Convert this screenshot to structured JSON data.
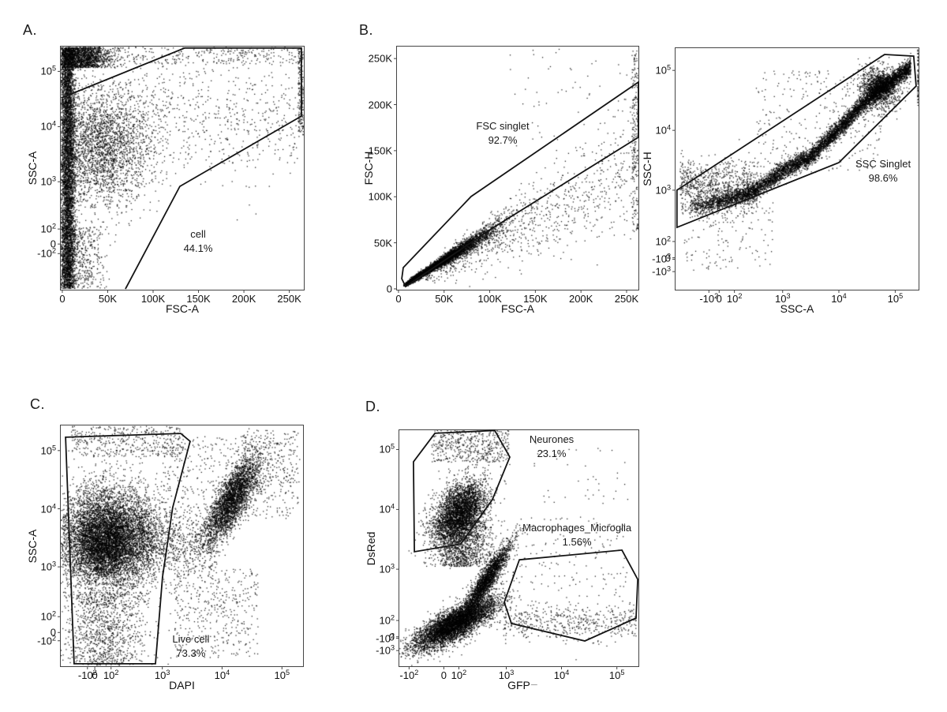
{
  "figure": {
    "panel_letters": [
      "A.",
      "B.",
      "C.",
      "D."
    ],
    "artifact_dash": "–",
    "point_color": "#000000",
    "gate_color": "#141414",
    "axis_color": "#454545"
  },
  "chart_data": [
    {
      "id": "A",
      "type": "scatter",
      "xlabel": "FSC-A",
      "ylabel": "SSC-A",
      "x_axis": {
        "scale": "linear",
        "min": -1700,
        "max": 266000,
        "ticks": [
          {
            "v": 0,
            "l": "0"
          },
          {
            "v": 50000,
            "l": "50K"
          },
          {
            "v": 100000,
            "l": "100K"
          },
          {
            "v": 150000,
            "l": "150K"
          },
          {
            "v": 200000,
            "l": "200K"
          },
          {
            "v": 250000,
            "l": "250K"
          }
        ]
      },
      "y_axis": {
        "scale": "flow",
        "mp": 150,
        "mn": 244,
        "min": -800,
        "max": 281000,
        "ticks": [
          {
            "v": 100000,
            "l": "10^5"
          },
          {
            "v": 10000,
            "l": "10^4"
          },
          {
            "v": 1000,
            "l": "10^3"
          },
          {
            "v": 100,
            "l": "10^2"
          },
          {
            "v": 0,
            "l": "0"
          },
          {
            "v": -100,
            "l": "-10^2"
          }
        ]
      },
      "gates": [
        {
          "name": "cell",
          "pct": "44.1%",
          "label_fx": 0.565,
          "label_fy": 0.745,
          "closed": false,
          "pts": [
            [
              0.003,
              0.211
            ],
            [
              0.51,
              0.006
            ],
            [
              0.99,
              0.006
            ],
            [
              0.99,
              0.286
            ],
            [
              0.49,
              0.575
            ],
            [
              0.266,
              0.997
            ]
          ]
        }
      ],
      "seed": 101,
      "clusters": [
        {
          "n": 5200,
          "t": "xy",
          "x": [
            "g",
            6000,
            4200
          ],
          "y": [
            "au",
            -1.85,
            8.18
          ]
        },
        {
          "n": 1700,
          "t": "xy",
          "x": [
            "g",
            20000,
            16000
          ],
          "y": [
            "au",
            7.35,
            8.2
          ]
        },
        {
          "n": 300,
          "t": "xy",
          "x": [
            "u",
            30000,
            262000
          ],
          "y": [
            "au",
            7.5,
            8.2
          ]
        },
        {
          "n": 2800,
          "t": "xy",
          "x": [
            "g",
            42000,
            28000
          ],
          "y": [
            "ag",
            4.1,
            1.25
          ]
        },
        {
          "n": 650,
          "t": "xy",
          "x": [
            "u",
            70000,
            262000
          ],
          "y": [
            "ag",
            5.3,
            1.3
          ]
        },
        {
          "n": 500,
          "t": "xy",
          "x": [
            "g",
            18000,
            15000
          ],
          "y": [
            "au",
            -1.85,
            0.7
          ]
        },
        {
          "n": 220,
          "t": "xy",
          "x": [
            "u",
            260000,
            266000
          ],
          "y": [
            "au",
            4.5,
            8.15
          ]
        }
      ]
    },
    {
      "id": "B-left",
      "type": "scatter",
      "xlabel": "FSC-A",
      "ylabel": "FSC-H",
      "x_axis": {
        "scale": "linear",
        "min": -1700,
        "max": 263000,
        "ticks": [
          {
            "v": 0,
            "l": "0"
          },
          {
            "v": 50000,
            "l": "50K"
          },
          {
            "v": 100000,
            "l": "100K"
          },
          {
            "v": 150000,
            "l": "150K"
          },
          {
            "v": 200000,
            "l": "200K"
          },
          {
            "v": 250000,
            "l": "250K"
          }
        ]
      },
      "y_axis": {
        "scale": "linear",
        "min": -900,
        "max": 263000,
        "ticks": [
          {
            "v": 0,
            "l": "0"
          },
          {
            "v": 50000,
            "l": "50K"
          },
          {
            "v": 100000,
            "l": "100K"
          },
          {
            "v": 150000,
            "l": "150K"
          },
          {
            "v": 200000,
            "l": "200K"
          },
          {
            "v": 250000,
            "l": "250K"
          }
        ]
      },
      "gates": [
        {
          "name": "FSC singlet",
          "pct": "92.7%",
          "label_fx": 0.438,
          "label_fy": 0.3,
          "closed": true,
          "pts": [
            [
              0.02,
              0.955
            ],
            [
              0.026,
              0.909
            ],
            [
              0.307,
              0.617
            ],
            [
              1.0,
              0.146
            ],
            [
              1.0,
              0.373
            ],
            [
              0.386,
              0.753
            ],
            [
              0.036,
              0.987
            ]
          ]
        }
      ],
      "seed": 202,
      "clusters": [
        {
          "n": 5200,
          "t": "diag",
          "x": [
            "g",
            40000,
            32000
          ],
          "k": 0.62,
          "noise": 0.055,
          "xmin": 7000
        },
        {
          "n": 900,
          "t": "diag",
          "x": [
            "u",
            30000,
            262000
          ],
          "k": 0.5,
          "noise": 0.14
        },
        {
          "n": 1300,
          "t": "diag",
          "x": [
            "g",
            14000,
            7000
          ],
          "k": 0.62,
          "noise": 0.09,
          "xmin": 6000
        },
        {
          "n": 220,
          "t": "xy",
          "x": [
            "u",
            256000,
            263000
          ],
          "y": [
            "u",
            60000,
            262000
          ]
        },
        {
          "n": 60,
          "t": "xy",
          "x": [
            "u",
            120000,
            260000
          ],
          "y": [
            "u",
            150000,
            262000
          ]
        }
      ]
    },
    {
      "id": "B-right",
      "type": "scatter",
      "xlabel": "SSC-A",
      "ylabel": "SSC-H",
      "x_axis": {
        "scale": "flow",
        "mp": 150,
        "mn": 232,
        "min": -670,
        "max": 260000,
        "ticks": [
          {
            "v": -100,
            "l": "-10^2"
          },
          {
            "v": 0,
            "l": "0"
          },
          {
            "v": 100,
            "l": "10^2"
          },
          {
            "v": 1000,
            "l": "10^3"
          },
          {
            "v": 10000,
            "l": "10^4"
          },
          {
            "v": 100000,
            "l": "10^5"
          }
        ]
      },
      "y_axis": {
        "scale": "flow",
        "mp": 150,
        "mn": 1800,
        "min": -2800,
        "max": 235000,
        "ticks": [
          {
            "v": 100000,
            "l": "10^5"
          },
          {
            "v": 10000,
            "l": "10^4"
          },
          {
            "v": 1000,
            "l": "10^3"
          },
          {
            "v": 100,
            "l": "10^2"
          },
          {
            "v": 0,
            "l": "0"
          },
          {
            "v": -100,
            "l": "-10^2"
          },
          {
            "v": -1000,
            "l": "-10^3"
          }
        ]
      },
      "gates": [
        {
          "name": "SSC Singlet",
          "pct": "98.6%",
          "label_fx": 0.854,
          "label_fy": 0.45,
          "closed": true,
          "pts": [
            [
              0.006,
              0.588
            ],
            [
              0.86,
              0.026
            ],
            [
              0.98,
              0.033
            ],
            [
              0.99,
              0.157
            ],
            [
              0.672,
              0.474
            ],
            [
              0.006,
              0.742
            ]
          ]
        }
      ],
      "seed": 303,
      "clusters": [
        {
          "n": 6500,
          "t": "curve",
          "pts": [
            [
              -350,
              520
            ],
            [
              0,
              620
            ],
            [
              300,
              950
            ],
            [
              1000,
              2100
            ],
            [
              3000,
              3500
            ],
            [
              10000,
              10500
            ],
            [
              40000,
              40000
            ],
            [
              90000,
              68000
            ],
            [
              190000,
              115000
            ]
          ],
          "s": 0.17,
          "p": 0.7
        },
        {
          "n": 1300,
          "t": "xy",
          "x": [
            "lg",
            4.72,
            0.17
          ],
          "y": [
            "lg",
            4.7,
            0.17
          ]
        },
        {
          "n": 300,
          "t": "xy",
          "x": [
            "lu",
            2.5,
            4.8
          ],
          "y": [
            "lu",
            3.3,
            5.0
          ]
        },
        {
          "n": 900,
          "t": "xy",
          "x": [
            "au",
            -1.6,
            1.6
          ],
          "y": [
            "ag",
            2.75,
            0.5
          ]
        },
        {
          "n": 120,
          "t": "xy",
          "x": [
            "u",
            250000,
            260000
          ],
          "y": [
            "au",
            5.8,
            8.0
          ]
        },
        {
          "n": 160,
          "t": "xy",
          "x": [
            "au",
            -1.5,
            2.2
          ],
          "y": [
            "au",
            -0.5,
            2.2
          ]
        }
      ]
    },
    {
      "id": "C",
      "type": "scatter",
      "xlabel": "DAPI",
      "ylabel": "SSC-A",
      "x_axis": {
        "scale": "flow",
        "mp": 150,
        "mn": 350,
        "min": -600,
        "max": 225000,
        "ticks": [
          {
            "v": -100,
            "l": "-10^2"
          },
          {
            "v": 0,
            "l": "0"
          },
          {
            "v": 100,
            "l": "10^2"
          },
          {
            "v": 1000,
            "l": "10^3"
          },
          {
            "v": 10000,
            "l": "10^4"
          },
          {
            "v": 100000,
            "l": "10^5"
          }
        ]
      },
      "y_axis": {
        "scale": "flow",
        "mp": 150,
        "mn": 300,
        "min": -530,
        "max": 270000,
        "ticks": [
          {
            "v": 100000,
            "l": "10^5"
          },
          {
            "v": 10000,
            "l": "10^4"
          },
          {
            "v": 1000,
            "l": "10^3"
          },
          {
            "v": 100,
            "l": "10^2"
          },
          {
            "v": 0,
            "l": "0"
          },
          {
            "v": -100,
            "l": "-10^2"
          }
        ]
      },
      "gates": [
        {
          "name": "Live cell",
          "pct": "73.3%",
          "label_fx": 0.537,
          "label_fy": 0.86,
          "closed": true,
          "pts": [
            [
              0.02,
              0.049
            ],
            [
              0.495,
              0.033
            ],
            [
              0.534,
              0.066
            ],
            [
              0.462,
              0.341
            ],
            [
              0.42,
              0.63
            ],
            [
              0.391,
              0.99
            ],
            [
              0.055,
              0.99
            ]
          ]
        }
      ],
      "seed": 404,
      "clusters": [
        {
          "n": 6000,
          "t": "xy",
          "x": [
            "ag",
            0.55,
            1.0
          ],
          "y": [
            "ag",
            3.85,
            1.0
          ]
        },
        {
          "n": 2600,
          "t": "xy",
          "x": [
            "ag",
            0.35,
            0.65
          ],
          "y": [
            "ag",
            3.35,
            0.7
          ]
        },
        {
          "n": 1100,
          "t": "xy",
          "x": [
            "ag",
            0.35,
            0.85
          ],
          "y": [
            "au",
            -1.3,
            1.6
          ]
        },
        {
          "n": 420,
          "t": "xy",
          "x": [
            "au",
            -0.9,
            3.4
          ],
          "y": [
            "au",
            6.95,
            8.15
          ]
        },
        {
          "n": 3000,
          "t": "corr",
          "x": [
            "lg",
            4.18,
            0.22
          ],
          "a": -1.35,
          "b": 1.25,
          "s": 0.55
        },
        {
          "n": 800,
          "t": "xy",
          "x": [
            "lu",
            2.6,
            3.9
          ],
          "y": [
            "ag",
            3.6,
            0.75
          ]
        },
        {
          "n": 400,
          "t": "xy",
          "x": [
            "lu",
            3.2,
            4.6
          ],
          "y": [
            "au",
            -1.0,
            2.5
          ]
        },
        {
          "n": 260,
          "t": "xy",
          "x": [
            "lu",
            4.3,
            5.3
          ],
          "y": [
            "au",
            4.5,
            8.0
          ]
        },
        {
          "n": 300,
          "t": "xy",
          "x": [
            "lu",
            3.0,
            5.2
          ],
          "y": [
            "au",
            5.5,
            7.8
          ]
        }
      ]
    },
    {
      "id": "D",
      "type": "scatter",
      "xlabel": "GFP",
      "ylabel": "DsRed",
      "x_axis": {
        "scale": "flow",
        "mp": 150,
        "mn": 50,
        "min": -155,
        "max": 245000,
        "ticks": [
          {
            "v": -100,
            "l": "-10^2"
          },
          {
            "v": 0,
            "l": "0"
          },
          {
            "v": 100,
            "l": "10^2"
          },
          {
            "v": 1000,
            "l": "10^3"
          },
          {
            "v": 10000,
            "l": "10^4"
          },
          {
            "v": 100000,
            "l": "10^5"
          }
        ]
      },
      "y_axis": {
        "scale": "flow",
        "mp": 150,
        "mn": 1800,
        "min": -2500,
        "max": 210000,
        "ticks": [
          {
            "v": 100000,
            "l": "10^5"
          },
          {
            "v": 10000,
            "l": "10^4"
          },
          {
            "v": 1000,
            "l": "10^3"
          },
          {
            "v": 100,
            "l": "10^2"
          },
          {
            "v": 0,
            "l": "0"
          },
          {
            "v": -100,
            "l": "-10^2"
          },
          {
            "v": -1000,
            "l": "-10^3"
          }
        ]
      },
      "gates": [
        {
          "name": "Neurones",
          "pct": "23.1%",
          "label_fx": 0.637,
          "label_fy": 0.01,
          "closed": true,
          "pts": [
            [
              0.149,
              0.013
            ],
            [
              0.399,
              0.001
            ],
            [
              0.462,
              0.114
            ],
            [
              0.389,
              0.294
            ],
            [
              0.257,
              0.482
            ],
            [
              0.063,
              0.515
            ],
            [
              0.059,
              0.134
            ]
          ]
        },
        {
          "name": "Macrophages_Microglia",
          "pct": "1.56%",
          "label_fx": 0.743,
          "label_fy": 0.385,
          "closed": true,
          "pts": [
            [
              0.502,
              0.549
            ],
            [
              0.931,
              0.508
            ],
            [
              0.997,
              0.632
            ],
            [
              0.99,
              0.796
            ],
            [
              0.776,
              0.893
            ],
            [
              0.469,
              0.819
            ],
            [
              0.439,
              0.729
            ]
          ]
        }
      ],
      "seed": 505,
      "clusters": [
        {
          "n": 5200,
          "t": "corr",
          "x": [
            "ag",
            0.45,
            0.85
          ],
          "a": 0.28,
          "b": 0.45,
          "s": 0.3
        },
        {
          "n": 2300,
          "t": "corr",
          "x": [
            "ag",
            1.75,
            0.5
          ],
          "a": -0.15,
          "b": 1.3,
          "s": 0.28
        },
        {
          "n": 1300,
          "t": "xy",
          "x": [
            "ag",
            0.7,
            0.6
          ],
          "y": [
            "au",
            2.7,
            4.5
          ]
        },
        {
          "n": 3400,
          "t": "corrx",
          "y": [
            "ag",
            4.8,
            0.6
          ],
          "a": -1.0,
          "b": 0.35,
          "s": 0.5
        },
        {
          "n": 500,
          "t": "xy",
          "x": [
            "au",
            -0.5,
            2.7
          ],
          "y": [
            "au",
            6.7,
            8.0
          ]
        },
        {
          "n": 520,
          "t": "xy",
          "x": [
            "lu",
            2.95,
            5.35
          ],
          "y": [
            "ag",
            0.55,
            0.35
          ]
        },
        {
          "n": 160,
          "t": "xy",
          "x": [
            "lu",
            2.9,
            5.2
          ],
          "y": [
            "au",
            1.5,
            4.6
          ]
        },
        {
          "n": 40,
          "t": "xy",
          "x": [
            "lu",
            3.5,
            5.2
          ],
          "y": [
            "au",
            5.0,
            7.5
          ]
        }
      ]
    }
  ]
}
